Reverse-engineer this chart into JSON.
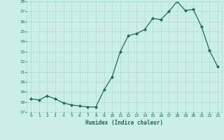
{
  "x": [
    0,
    1,
    2,
    3,
    4,
    5,
    6,
    7,
    8,
    9,
    10,
    11,
    12,
    13,
    14,
    15,
    16,
    17,
    18,
    19,
    20,
    21,
    22,
    23
  ],
  "y": [
    18.3,
    18.2,
    18.6,
    18.3,
    17.9,
    17.7,
    17.6,
    17.5,
    17.5,
    19.2,
    20.5,
    23.0,
    24.6,
    24.8,
    25.2,
    26.3,
    26.2,
    27.0,
    28.0,
    27.1,
    27.2,
    25.5,
    23.1,
    21.5
  ],
  "ylim": [
    17,
    28
  ],
  "yticks": [
    17,
    18,
    19,
    20,
    21,
    22,
    23,
    24,
    25,
    26,
    27,
    28
  ],
  "xticks": [
    0,
    1,
    2,
    3,
    4,
    5,
    6,
    7,
    8,
    9,
    10,
    11,
    12,
    13,
    14,
    15,
    16,
    17,
    18,
    19,
    20,
    21,
    22,
    23
  ],
  "xlabel": "Humidex (Indice chaleur)",
  "line_color": "#1a6b5a",
  "marker_color": "#1a6b5a",
  "bg_color": "#cceee8",
  "grid_color": "#aaddcc",
  "tick_color": "#1a6b5a"
}
